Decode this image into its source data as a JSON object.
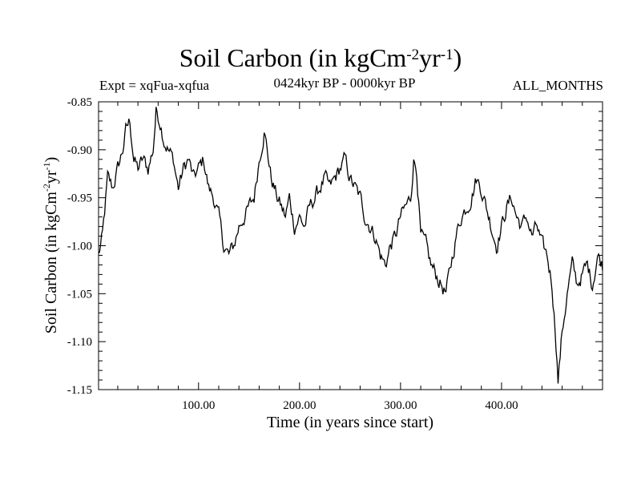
{
  "header": {
    "title_main": "Soil Carbon (in kgCm",
    "title_sup1": "-2",
    "title_mid": "yr",
    "title_sup2": "-1",
    "title_end": ")",
    "expt": "Expt = xqFua-xqfua",
    "period": "0424kyr BP - 0000kyr BP",
    "months": "ALL_MONTHS"
  },
  "colors": {
    "line": "#000000",
    "axis": "#000000",
    "background": "#ffffff"
  },
  "chart_data": {
    "type": "line",
    "title": "Soil Carbon (in kgCm-2yr-1)",
    "xlabel": "Time (in years since start)",
    "ylabel": "Soil Carbon (in kgCm-2yr-1)",
    "ylabel_parts": {
      "a": "Soil Carbon (in kgCm",
      "b": "-2",
      "c": "yr",
      "d": "-1",
      "e": ")"
    },
    "xlim": [
      1,
      500
    ],
    "ylim": [
      -1.15,
      -0.85
    ],
    "xticks": [
      100,
      200,
      300,
      400
    ],
    "xtick_labels": [
      "100.00",
      "200.00",
      "300.00",
      "400.00"
    ],
    "yticks": [
      -0.85,
      -0.9,
      -0.95,
      -1.0,
      -1.05,
      -1.1,
      -1.15
    ],
    "ytick_labels": [
      "-0.85",
      "-0.90",
      "-0.95",
      "-1.00",
      "-1.05",
      "-1.10",
      "-1.15"
    ],
    "grid": false,
    "series": [
      {
        "name": "xqFua-xqfua",
        "x": [
          1,
          5,
          10,
          15,
          20,
          25,
          28,
          32,
          36,
          40,
          45,
          50,
          55,
          58,
          62,
          66,
          70,
          75,
          80,
          85,
          90,
          95,
          100,
          105,
          110,
          115,
          120,
          125,
          130,
          135,
          140,
          145,
          150,
          155,
          160,
          165,
          168,
          172,
          178,
          182,
          186,
          190,
          195,
          200,
          205,
          210,
          215,
          220,
          225,
          230,
          235,
          240,
          245,
          250,
          255,
          260,
          265,
          270,
          275,
          280,
          285,
          290,
          295,
          300,
          305,
          310,
          313,
          316,
          320,
          325,
          330,
          335,
          340,
          345,
          350,
          355,
          360,
          365,
          370,
          375,
          380,
          385,
          390,
          395,
          400,
          405,
          410,
          415,
          420,
          425,
          430,
          435,
          440,
          445,
          450,
          454,
          456,
          460,
          465,
          470,
          475,
          480,
          485,
          490,
          495,
          500
        ],
        "values": [
          -1.01,
          -0.99,
          -0.93,
          -0.94,
          -0.92,
          -0.9,
          -0.88,
          -0.87,
          -0.91,
          -0.92,
          -0.91,
          -0.92,
          -0.9,
          -0.86,
          -0.87,
          -0.89,
          -0.9,
          -0.91,
          -0.94,
          -0.92,
          -0.91,
          -0.93,
          -0.92,
          -0.91,
          -0.94,
          -0.95,
          -0.97,
          -1.0,
          -1.01,
          -1.0,
          -0.98,
          -0.97,
          -0.96,
          -0.95,
          -0.91,
          -0.88,
          -0.9,
          -0.93,
          -0.95,
          -0.96,
          -0.97,
          -0.95,
          -0.98,
          -0.97,
          -0.98,
          -0.96,
          -0.95,
          -0.94,
          -0.93,
          -0.94,
          -0.93,
          -0.92,
          -0.91,
          -0.93,
          -0.94,
          -0.95,
          -0.97,
          -0.98,
          -0.99,
          -1.01,
          -1.02,
          -1.0,
          -0.99,
          -0.97,
          -0.96,
          -0.95,
          -0.91,
          -0.92,
          -0.99,
          -1.0,
          -1.02,
          -1.03,
          -1.04,
          -1.05,
          -1.02,
          -0.99,
          -0.97,
          -0.96,
          -0.95,
          -0.93,
          -0.94,
          -0.96,
          -0.98,
          -1.0,
          -0.98,
          -0.96,
          -0.95,
          -0.97,
          -0.98,
          -0.97,
          -0.99,
          -0.98,
          -1.0,
          -1.01,
          -1.04,
          -1.1,
          -1.14,
          -1.09,
          -1.05,
          -1.02,
          -1.04,
          -1.03,
          -1.02,
          -1.04,
          -1.01,
          -1.02
        ]
      }
    ]
  }
}
